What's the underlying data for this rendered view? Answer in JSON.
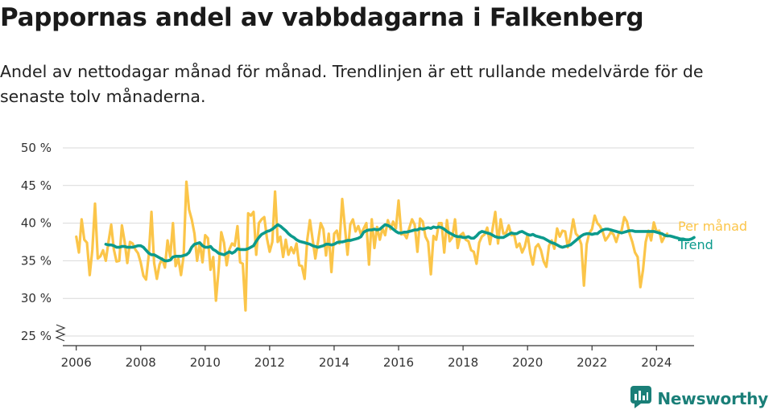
{
  "title": "Pappornas andel av vabbdagarna i Falkenberg",
  "subtitle": "Andel av nettodagar månad för månad. Trendlinjen är ett rullande medelvärde för de senaste tolv månaderna.",
  "brand": {
    "name": "Newsworthy",
    "icon": "newsworthy-logo-icon"
  },
  "colors": {
    "monthly": "#fbc549",
    "trend": "#0c9a8c",
    "grid": "#d9d9d9",
    "text": "#333333"
  },
  "chart_data": {
    "type": "line",
    "x_unit": "month",
    "xlim": [
      "2005-08",
      "2025-03"
    ],
    "ylim": [
      25,
      50
    ],
    "y_break": true,
    "yticks": [
      25,
      30,
      35,
      40,
      45,
      50
    ],
    "ytick_labels": [
      "25 %",
      "30 %",
      "35 %",
      "40 %",
      "45 %",
      "50 %"
    ],
    "xticks": [
      "2006",
      "2008",
      "2010",
      "2012",
      "2014",
      "2016",
      "2018",
      "2020",
      "2022",
      "2024"
    ],
    "grid": "horizontal",
    "legend": "right, at end of lines",
    "series": [
      {
        "name": "Per månad",
        "start": "2006-01",
        "values": [
          38.2,
          36.1,
          40.5,
          37.8,
          37.4,
          33.1,
          36.5,
          42.6,
          35.3,
          35.6,
          36.4,
          35.0,
          37.5,
          39.8,
          36.5,
          34.9,
          35.0,
          39.7,
          37.6,
          34.7,
          37.5,
          37.3,
          36.5,
          36.0,
          34.8,
          33.0,
          32.5,
          35.8,
          41.5,
          34.7,
          32.6,
          34.5,
          35.3,
          34.1,
          37.7,
          35.5,
          40.0,
          34.3,
          35.3,
          33.1,
          35.7,
          45.5,
          41.8,
          40.5,
          38.6,
          35.0,
          37.4,
          34.8,
          38.4,
          38.0,
          33.8,
          35.5,
          29.7,
          33.8,
          38.8,
          37.4,
          34.4,
          36.5,
          37.3,
          37.0,
          39.6,
          34.8,
          34.6,
          28.4,
          41.3,
          41.0,
          41.5,
          35.8,
          40.0,
          40.5,
          40.8,
          38.0,
          36.2,
          37.5,
          44.2,
          37.5,
          38.2,
          35.5,
          37.8,
          35.8,
          36.8,
          36.0,
          37.3,
          34.4,
          34.3,
          32.6,
          37.8,
          40.4,
          37.8,
          35.3,
          37.5,
          40.0,
          39.2,
          35.7,
          38.6,
          33.5,
          38.6,
          39.0,
          37.3,
          43.2,
          39.5,
          35.8,
          39.8,
          40.5,
          38.9,
          39.6,
          38.5,
          39.3,
          40.0,
          34.5,
          40.5,
          36.7,
          39.5,
          37.8,
          39.3,
          38.4,
          40.4,
          39.2,
          40.2,
          39.3,
          43.0,
          38.5,
          38.6,
          38.0,
          39.4,
          40.5,
          39.8,
          36.2,
          40.6,
          40.2,
          38.2,
          37.5,
          33.2,
          38.3,
          37.8,
          40.0,
          40.0,
          36.1,
          40.4,
          37.6,
          38.1,
          40.5,
          36.7,
          38.4,
          38.7,
          37.8,
          37.6,
          36.4,
          36.2,
          34.6,
          37.4,
          38.2,
          38.5,
          39.4,
          37.2,
          39.3,
          41.5,
          37.3,
          40.5,
          38.6,
          38.7,
          39.7,
          38.4,
          38.5,
          36.8,
          37.3,
          36.1,
          36.9,
          38.5,
          36.0,
          34.5,
          36.8,
          37.2,
          36.4,
          34.9,
          34.2,
          37.0,
          37.7,
          36.6,
          39.3,
          38.2,
          39.0,
          38.9,
          36.8,
          38.2,
          40.5,
          38.6,
          38.2,
          37.2,
          31.7,
          37.2,
          38.7,
          39.2,
          41.0,
          40.0,
          39.6,
          38.8,
          37.7,
          38.2,
          38.8,
          38.5,
          37.5,
          38.7,
          39.0,
          40.8,
          40.2,
          38.6,
          37.5,
          36.1,
          35.5,
          31.5,
          33.8,
          37.5,
          39.0,
          37.7,
          40.1,
          38.9,
          39.0,
          37.5,
          38.2,
          38.6
        ]
      },
      {
        "name": "Trend",
        "start": "2006-12",
        "values": [
          37.2,
          37.1,
          37.1,
          37.0,
          36.8,
          36.8,
          36.9,
          36.9,
          36.8,
          36.8,
          36.8,
          36.9,
          37.0,
          37.0,
          36.8,
          36.4,
          36.0,
          35.8,
          35.8,
          35.6,
          35.4,
          35.2,
          35.0,
          35.0,
          35.1,
          35.5,
          35.6,
          35.6,
          35.6,
          35.7,
          35.8,
          36.1,
          36.8,
          37.2,
          37.3,
          37.4,
          37.0,
          36.8,
          36.8,
          36.9,
          36.5,
          36.3,
          36.0,
          35.9,
          35.8,
          36.0,
          36.2,
          36.0,
          36.2,
          36.6,
          36.5,
          36.5,
          36.5,
          36.6,
          36.8,
          37.0,
          37.6,
          38.1,
          38.5,
          38.7,
          38.9,
          39.0,
          39.2,
          39.5,
          39.8,
          39.6,
          39.3,
          39.0,
          38.6,
          38.3,
          38.1,
          37.8,
          37.6,
          37.5,
          37.4,
          37.3,
          37.2,
          37.0,
          36.9,
          36.8,
          36.9,
          37.0,
          37.2,
          37.2,
          37.1,
          37.2,
          37.4,
          37.5,
          37.5,
          37.6,
          37.7,
          37.7,
          37.8,
          37.9,
          38.0,
          38.2,
          38.8,
          39.0,
          39.1,
          39.1,
          39.2,
          39.1,
          39.2,
          39.5,
          39.8,
          39.7,
          39.5,
          39.2,
          38.9,
          38.7,
          38.7,
          38.8,
          38.8,
          38.9,
          39.0,
          39.1,
          39.1,
          39.3,
          39.2,
          39.3,
          39.4,
          39.3,
          39.5,
          39.4,
          39.5,
          39.4,
          39.2,
          38.9,
          38.7,
          38.5,
          38.3,
          38.2,
          38.2,
          38.1,
          38.1,
          38.2,
          38.0,
          38.0,
          38.3,
          38.7,
          38.9,
          38.8,
          38.7,
          38.6,
          38.4,
          38.2,
          38.1,
          38.1,
          38.1,
          38.3,
          38.5,
          38.7,
          38.6,
          38.6,
          38.8,
          38.9,
          38.7,
          38.5,
          38.4,
          38.5,
          38.3,
          38.2,
          38.1,
          38.0,
          37.8,
          37.6,
          37.4,
          37.3,
          37.1,
          36.9,
          36.8,
          36.9,
          37.0,
          37.1,
          37.4,
          37.7,
          38.0,
          38.3,
          38.5,
          38.6,
          38.6,
          38.5,
          38.6,
          38.6,
          38.9,
          39.1,
          39.2,
          39.2,
          39.1,
          39.0,
          38.9,
          38.8,
          38.7,
          38.8,
          38.9,
          39.0,
          39.0,
          38.9,
          38.9,
          38.9,
          38.9,
          38.9,
          38.9,
          38.9,
          38.9,
          38.8,
          38.7,
          38.6,
          38.4,
          38.3,
          38.3,
          38.2,
          38.1,
          38.0,
          37.9,
          37.9,
          37.8,
          37.8,
          37.9,
          38.1
        ]
      }
    ]
  }
}
